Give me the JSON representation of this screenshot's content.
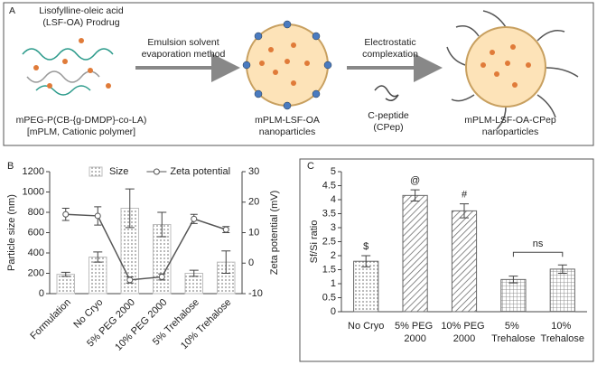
{
  "diagram": {
    "panel": "A",
    "prodrug": [
      "Lisofylline-oleic acid",
      "(LSF-OA) Prodrug"
    ],
    "polymer": [
      "mPEG-P(CB-{g-DMDP}-co-LA)",
      "[mPLM, Cationic polymer]"
    ],
    "step1": [
      "Emulsion solvent",
      "evaporation method"
    ],
    "np1": [
      "mPLM-LSF-OA",
      "nanoparticles"
    ],
    "step2": [
      "Electrostatic",
      "complexation"
    ],
    "peptide": [
      "C-peptide",
      "(CPep)"
    ],
    "np2": [
      "mPLM-LSF-OA-CPep",
      "nanoparticles"
    ]
  },
  "chart_data": [
    {
      "type": "bar",
      "panel": "B",
      "categories": [
        "Formulation",
        "No Cryo",
        "5% PEG 2000",
        "10% PEG 2000",
        "5% Trehalose",
        "10% Trehalose"
      ],
      "series": [
        {
          "name": "Size",
          "color": "#bdbdbd",
          "values": [
            190,
            360,
            840,
            680,
            200,
            310
          ],
          "errors": [
            20,
            50,
            190,
            120,
            30,
            110
          ]
        },
        {
          "name": "Zeta potential",
          "type": "line",
          "axis": "y2",
          "color": "#555555",
          "values": [
            16,
            15.5,
            -5.5,
            -4.5,
            14.5,
            11
          ],
          "errors": [
            2,
            3,
            1,
            1,
            1.5,
            1
          ]
        }
      ],
      "ylabel": "Particle size (nm)",
      "y2label": "Zeta potential (mV)",
      "ylim": [
        0,
        1200
      ],
      "yticks": [
        0,
        200,
        400,
        600,
        800,
        1000,
        1200
      ],
      "y2lim": [
        -10,
        30
      ],
      "y2ticks": [
        -10,
        0,
        10,
        20,
        30
      ]
    },
    {
      "type": "bar",
      "panel": "C",
      "categories": [
        "No Cryo",
        "5% PEG 2000",
        "10% PEG 2000",
        "5% Trehalose",
        "10% Trehalose"
      ],
      "values": [
        1.8,
        4.15,
        3.6,
        1.15,
        1.52
      ],
      "errors": [
        0.2,
        0.2,
        0.25,
        0.12,
        0.15
      ],
      "color": "#666666",
      "annotations": [
        "$",
        "@",
        "#",
        null,
        null
      ],
      "bracket_label": "ns",
      "ylabel": "Sf/Si ratio",
      "ylim": [
        0,
        5
      ],
      "yticks": [
        0,
        0.5,
        1,
        1.5,
        2,
        2.5,
        3,
        3.5,
        4,
        4.5,
        5
      ]
    }
  ]
}
